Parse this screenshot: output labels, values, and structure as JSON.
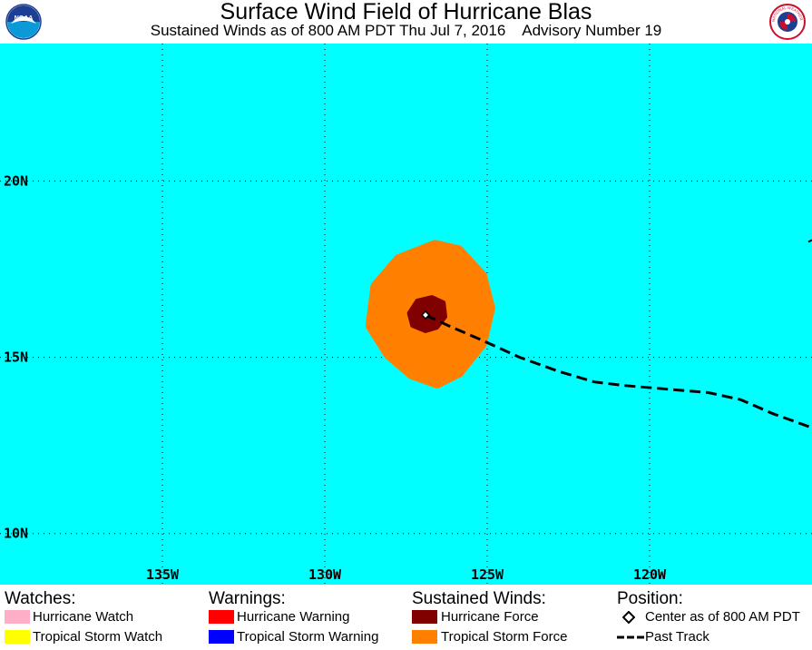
{
  "header": {
    "title": "Surface Wind Field of Hurricane Blas",
    "subtitle": "Sustained Winds as of 800 AM PDT Thu Jul 7, 2016    Advisory Number 19",
    "left_logo": {
      "icon": "noaa-logo-icon",
      "text": "NOAA"
    },
    "right_logo": {
      "icon": "nws-logo-icon",
      "text": "NATIONAL WEATHER SERVICE"
    }
  },
  "map": {
    "ocean_color": "#00ffff",
    "lon_range": [
      -140,
      -115
    ],
    "lat_range": [
      8.55,
      23.9
    ],
    "lon_ticks": [
      {
        "value": -135,
        "label": "135W"
      },
      {
        "value": -130,
        "label": "130W"
      },
      {
        "value": -125,
        "label": "125W"
      },
      {
        "value": -120,
        "label": "120W"
      }
    ],
    "lat_ticks": [
      {
        "value": 20,
        "label": "20N"
      },
      {
        "value": 15,
        "label": "15N"
      },
      {
        "value": 10,
        "label": "10N"
      }
    ],
    "storm_center": {
      "lon": -126.9,
      "lat": 16.2
    },
    "tropical_storm_force_field": {
      "color": "#ff8000",
      "outline": [
        [
          -126.6,
          18.15
        ],
        [
          -125.9,
          18.0
        ],
        [
          -125.2,
          17.3
        ],
        [
          -124.95,
          16.4
        ],
        [
          -125.2,
          15.4
        ],
        [
          -125.9,
          14.6
        ],
        [
          -126.55,
          14.3
        ],
        [
          -127.3,
          14.55
        ],
        [
          -128.0,
          15.1
        ],
        [
          -128.55,
          15.9
        ],
        [
          -128.4,
          17.0
        ],
        [
          -127.7,
          17.75
        ]
      ]
    },
    "hurricane_force_field": {
      "color": "#800000",
      "outline": [
        [
          -126.7,
          16.7
        ],
        [
          -126.35,
          16.55
        ],
        [
          -126.3,
          16.15
        ],
        [
          -126.55,
          15.85
        ],
        [
          -126.9,
          15.75
        ],
        [
          -127.3,
          15.9
        ],
        [
          -127.4,
          16.25
        ],
        [
          -127.15,
          16.6
        ]
      ]
    },
    "past_track": [
      [
        -126.9,
        16.2
      ],
      [
        -126.2,
        15.9
      ],
      [
        -125.2,
        15.5
      ],
      [
        -124.0,
        15.0
      ],
      [
        -122.8,
        14.6
      ],
      [
        -121.7,
        14.3
      ],
      [
        -120.8,
        14.2
      ],
      [
        -119.5,
        14.1
      ],
      [
        -118.2,
        14.0
      ],
      [
        -117.2,
        13.8
      ],
      [
        -116.2,
        13.4
      ],
      [
        -115.0,
        13.0
      ]
    ],
    "track_edge_mark": {
      "lon": -115.0,
      "lat": 18.3
    }
  },
  "legend": {
    "watches": {
      "heading": "Watches:",
      "items": [
        {
          "label": "Hurricane Watch",
          "color": "#ffaec8"
        },
        {
          "label": "Tropical Storm Watch",
          "color": "#ffff00"
        }
      ]
    },
    "warnings": {
      "heading": "Warnings:",
      "items": [
        {
          "label": "Hurricane Warning",
          "color": "#ff0000"
        },
        {
          "label": "Tropical Storm Warning",
          "color": "#0000ff"
        }
      ]
    },
    "winds": {
      "heading": "Sustained Winds:",
      "items": [
        {
          "label": "Hurricane Force",
          "color": "#800000"
        },
        {
          "label": "Tropical Storm Force",
          "color": "#ff8000"
        }
      ]
    },
    "position": {
      "heading": "Position:",
      "items": [
        {
          "label": "Center as of 800 AM PDT",
          "icon": "diamond-icon"
        },
        {
          "label": "Past Track",
          "icon": "dashed-line-icon"
        }
      ]
    }
  }
}
